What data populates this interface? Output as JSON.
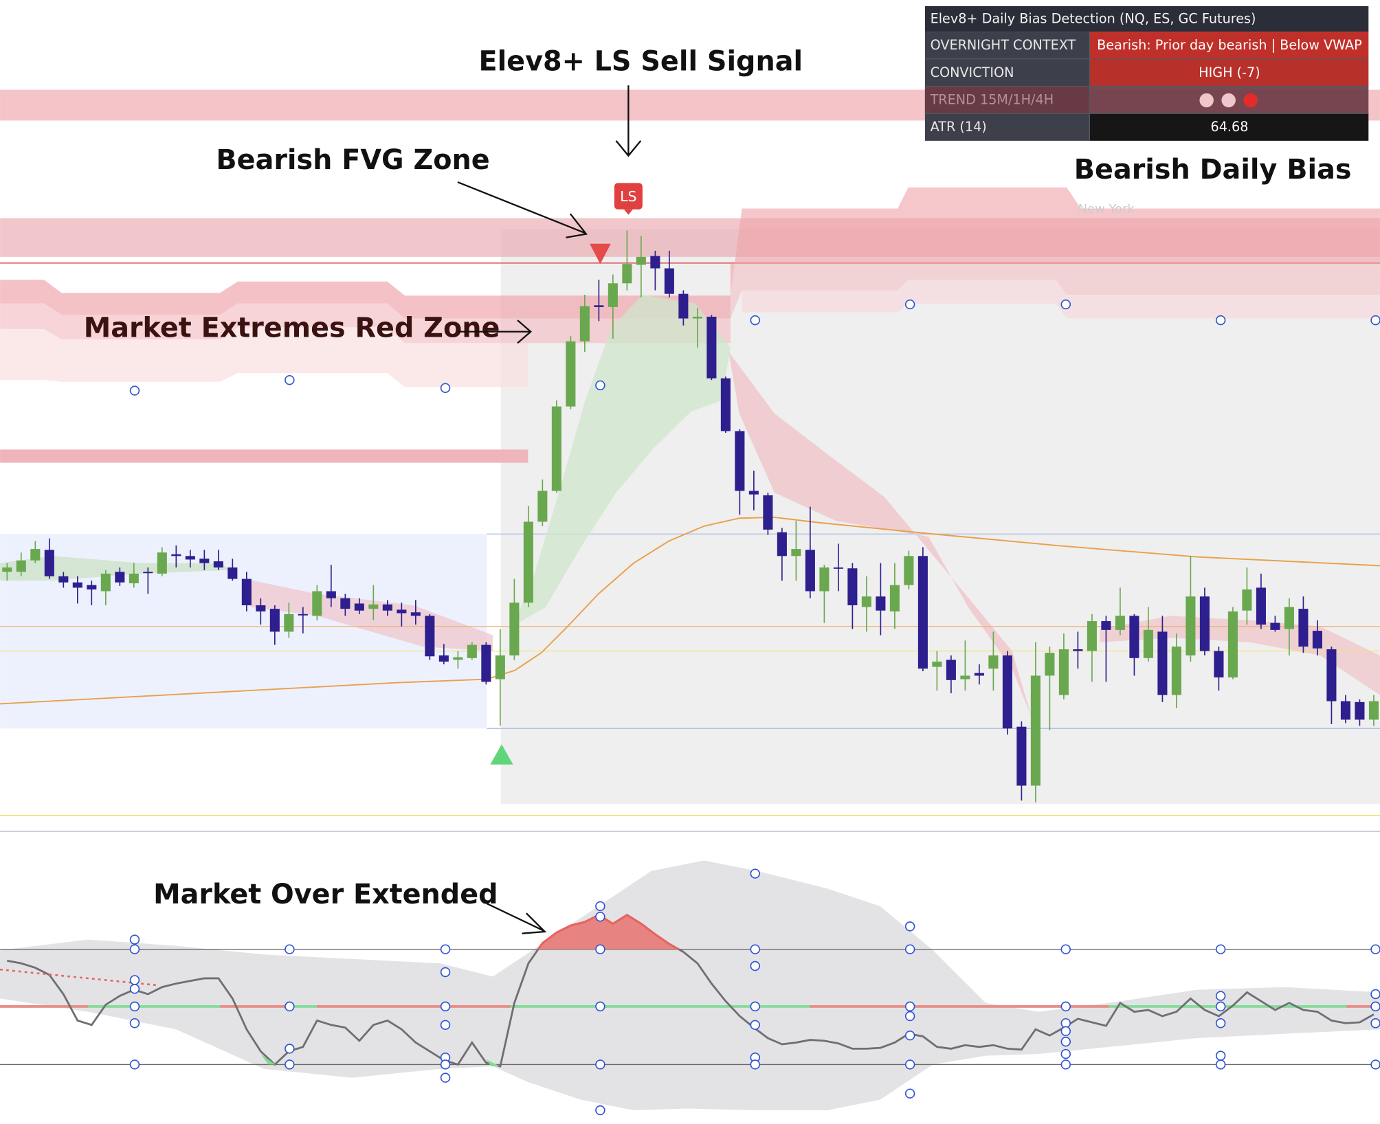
{
  "chart_data": {
    "type": "candlestick",
    "ylim": [
      60,
      1000
    ],
    "up_color": "#6aa84f",
    "down_color": "#2e1f8f",
    "open": [
      350,
      350,
      363,
      375,
      345,
      338,
      335,
      328,
      350,
      337,
      350,
      348,
      370,
      368,
      365,
      362,
      355,
      342,
      312,
      308,
      282,
      302,
      300,
      328,
      320,
      314,
      308,
      313,
      307,
      304,
      300,
      255,
      250,
      252,
      267,
      228,
      255,
      315,
      407,
      442,
      538,
      612,
      653,
      651,
      678,
      699,
      709,
      695,
      666,
      638,
      640,
      570,
      510,
      442,
      437,
      395,
      368,
      375,
      328,
      355,
      354,
      310,
      322,
      305,
      335,
      368,
      242,
      250,
      228,
      235,
      240,
      255,
      174,
      107,
      232,
      210,
      262,
      260,
      294,
      284,
      300,
      252,
      282,
      210,
      255,
      322,
      260,
      230,
      306,
      332,
      292,
      285,
      308,
      283,
      262,
      203,
      202,
      182
    ],
    "high": [
      360,
      372,
      385,
      388,
      350,
      345,
      340,
      352,
      355,
      360,
      355,
      378,
      380,
      375,
      375,
      375,
      365,
      350,
      320,
      312,
      315,
      310,
      335,
      358,
      325,
      320,
      335,
      318,
      315,
      318,
      302,
      268,
      260,
      270,
      270,
      285,
      342,
      425,
      455,
      545,
      618,
      665,
      682,
      688,
      738,
      732,
      715,
      715,
      670,
      650,
      642,
      572,
      512,
      465,
      440,
      400,
      408,
      424,
      358,
      382,
      360,
      345,
      360,
      360,
      374,
      378,
      260,
      255,
      272,
      245,
      282,
      260,
      180,
      270,
      265,
      280,
      282,
      302,
      300,
      332,
      302,
      310,
      300,
      280,
      368,
      332,
      265,
      310,
      355,
      348,
      300,
      320,
      322,
      295,
      265,
      210,
      205,
      210
    ],
    "low": [
      340,
      345,
      360,
      342,
      332,
      314,
      312,
      312,
      334,
      332,
      325,
      345,
      355,
      355,
      352,
      352,
      340,
      305,
      290,
      267,
      275,
      280,
      295,
      310,
      300,
      302,
      295,
      300,
      288,
      290,
      250,
      245,
      240,
      250,
      222,
      175,
      250,
      310,
      402,
      440,
      535,
      600,
      635,
      615,
      670,
      662,
      670,
      662,
      630,
      605,
      568,
      508,
      415,
      420,
      392,
      340,
      340,
      320,
      292,
      328,
      285,
      282,
      278,
      285,
      330,
      237,
      215,
      212,
      215,
      222,
      215,
      165,
      90,
      88,
      170,
      205,
      240,
      225,
      225,
      278,
      232,
      248,
      202,
      195,
      248,
      255,
      215,
      228,
      290,
      285,
      282,
      255,
      258,
      255,
      177,
      178,
      175,
      175
    ],
    "close": [
      355,
      363,
      376,
      345,
      338,
      332,
      330,
      348,
      338,
      348,
      349,
      372,
      368,
      364,
      360,
      355,
      342,
      312,
      305,
      282,
      302,
      301,
      328,
      320,
      308,
      306,
      313,
      306,
      303,
      300,
      254,
      248,
      253,
      267,
      225,
      255,
      315,
      407,
      442,
      538,
      612,
      652,
      651,
      678,
      700,
      708,
      695,
      666,
      638,
      640,
      570,
      510,
      442,
      438,
      398,
      368,
      376,
      328,
      355,
      354,
      312,
      322,
      306,
      335,
      368,
      240,
      248,
      227,
      232,
      232,
      255,
      172,
      107,
      232,
      258,
      262,
      260,
      294,
      284,
      300,
      252,
      284,
      210,
      265,
      322,
      260,
      230,
      305,
      330,
      290,
      284,
      310,
      265,
      263,
      203,
      182,
      182,
      203
    ],
    "oscillator": {
      "values": [
        208,
        205,
        200,
        192,
        170,
        140,
        135,
        158,
        168,
        175,
        170,
        178,
        182,
        185,
        188,
        188,
        165,
        130,
        105,
        90,
        105,
        110,
        140,
        135,
        132,
        117,
        135,
        140,
        130,
        115,
        105,
        95,
        90,
        115,
        92,
        88,
        160,
        205,
        228,
        240,
        248,
        252,
        260,
        250,
        260,
        250,
        238,
        227,
        218,
        205,
        182,
        162,
        145,
        132,
        120,
        113,
        115,
        118,
        117,
        114,
        108,
        108,
        109,
        115,
        125,
        122,
        110,
        108,
        112,
        110,
        112,
        108,
        107,
        130,
        123,
        132,
        142,
        138,
        134,
        160,
        150,
        152,
        145,
        150,
        165,
        152,
        145,
        157,
        172,
        162,
        152,
        160,
        152,
        150,
        140,
        137,
        138,
        147
      ],
      "ylim": [
        22,
        342
      ],
      "yticks": [
        90,
        156,
        221
      ],
      "color": "#6f6f73",
      "overbought_color": "#e8645f"
    },
    "annotations": [
      "Elev8+ LS Sell Signal",
      "Bearish FVG Zone",
      "Market Extremes Red Zone",
      "Bearish Daily Bias",
      "Market Over Extended"
    ],
    "signal_label": "LS",
    "session_label": "New York"
  },
  "table": {
    "title": "Elev8+ Daily Bias Detection (NQ, ES, GC Futures)",
    "rows": [
      {
        "label": "OVERNIGHT CONTEXT",
        "value": "Bearish: Prior day bearish | Below VWAP"
      },
      {
        "label": "CONVICTION",
        "value": "HIGH (-7)"
      },
      {
        "label": "TREND 15M/1H/4H"
      },
      {
        "label": "ATR (14)",
        "value": 64.68
      }
    ]
  }
}
